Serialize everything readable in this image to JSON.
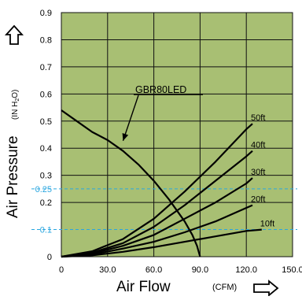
{
  "colors": {
    "plot_background": "#a8bf73",
    "grid": "#111111",
    "curve": "#000000",
    "reference_line": "#2aa6e0"
  },
  "icons": {
    "y_axis_arrow": "up-arrow-icon",
    "x_axis_arrow": "right-arrow-icon"
  },
  "chart_data": {
    "type": "line",
    "title": "",
    "xlabel": "Air Flow",
    "xlabel_unit": "(CFM)",
    "ylabel": "Air Pressure",
    "ylabel_unit_main": "(IN H",
    "ylabel_unit_sub": "2",
    "ylabel_unit_end": "O)",
    "xlim": [
      0,
      150
    ],
    "ylim": [
      0,
      0.9
    ],
    "x_ticks": [
      {
        "value": 0,
        "label": "0"
      },
      {
        "value": 30,
        "label": "30.0"
      },
      {
        "value": 60,
        "label": "60.0"
      },
      {
        "value": 90,
        "label": "90.0"
      },
      {
        "value": 120,
        "label": "120.0"
      },
      {
        "value": 150,
        "label": "150.0"
      }
    ],
    "y_ticks": [
      {
        "value": 0,
        "label": "0"
      },
      {
        "value": 0.2,
        "label": "0.2"
      },
      {
        "value": 0.3,
        "label": "0.3"
      },
      {
        "value": 0.4,
        "label": "0.4"
      },
      {
        "value": 0.5,
        "label": "0.5"
      },
      {
        "value": 0.6,
        "label": "0.6"
      },
      {
        "value": 0.7,
        "label": "0.7"
      },
      {
        "value": 0.8,
        "label": "0.8"
      },
      {
        "value": 0.9,
        "label": "0.9"
      }
    ],
    "grid": true,
    "reference_lines": [
      {
        "value": 0.25,
        "label": "0.25"
      },
      {
        "value": 0.1,
        "label": "0.1"
      }
    ],
    "series": [
      {
        "name": "GBR80LED",
        "x": [
          0,
          10,
          20,
          30,
          40,
          50,
          60,
          70,
          80,
          85,
          88,
          90
        ],
        "y": [
          0.54,
          0.5,
          0.46,
          0.43,
          0.39,
          0.34,
          0.28,
          0.21,
          0.13,
          0.08,
          0.04,
          0.0
        ]
      },
      {
        "name": "50ft",
        "x": [
          0,
          20,
          40,
          60,
          80,
          100,
          120,
          124
        ],
        "y": [
          0.0,
          0.02,
          0.065,
          0.14,
          0.24,
          0.35,
          0.47,
          0.49
        ]
      },
      {
        "name": "40ft",
        "x": [
          0,
          20,
          40,
          60,
          80,
          100,
          120,
          124
        ],
        "y": [
          0.0,
          0.015,
          0.05,
          0.11,
          0.19,
          0.28,
          0.37,
          0.39
        ]
      },
      {
        "name": "30ft",
        "x": [
          0,
          20,
          40,
          60,
          80,
          100,
          120,
          124
        ],
        "y": [
          0.0,
          0.012,
          0.04,
          0.08,
          0.14,
          0.2,
          0.27,
          0.29
        ]
      },
      {
        "name": "20ft",
        "x": [
          0,
          20,
          40,
          60,
          80,
          100,
          120,
          124
        ],
        "y": [
          0.0,
          0.008,
          0.03,
          0.055,
          0.09,
          0.13,
          0.18,
          0.19
        ]
      },
      {
        "name": "10ft",
        "x": [
          0,
          20,
          40,
          60,
          80,
          100,
          120,
          130
        ],
        "y": [
          0.0,
          0.005,
          0.018,
          0.035,
          0.055,
          0.075,
          0.095,
          0.1
        ]
      }
    ],
    "annotation": {
      "text": "GBR80LED",
      "points_to": {
        "x": 38,
        "y": 0.41
      }
    }
  }
}
